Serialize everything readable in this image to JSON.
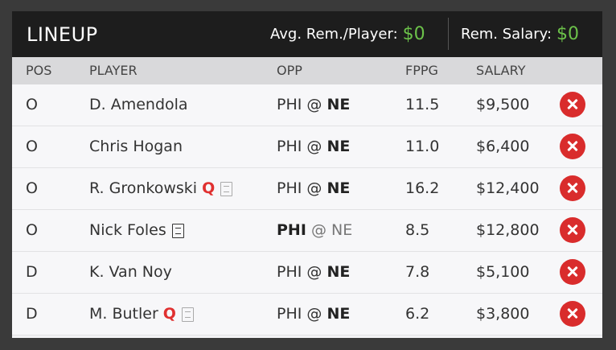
{
  "header": {
    "title": "LINEUP",
    "avg_label": "Avg. Rem./Player:",
    "avg_value": "$0",
    "rem_label": "Rem. Salary:",
    "rem_value": "$0",
    "accent_color": "#6cc24a"
  },
  "columns": {
    "pos": "POS",
    "player": "PLAYER",
    "opp": "OPP",
    "fppg": "FPPG",
    "salary": "SALARY"
  },
  "rows": [
    {
      "pos": "O",
      "player": "D. Amendola",
      "q": "",
      "note": "",
      "opp_away": "PHI",
      "opp_at": " @ ",
      "opp_home": "NE",
      "fppg": "11.5",
      "salary": "$9,500"
    },
    {
      "pos": "O",
      "player": "Chris Hogan",
      "q": "",
      "note": "",
      "opp_away": "PHI",
      "opp_at": " @ ",
      "opp_home": "NE",
      "fppg": "11.0",
      "salary": "$6,400"
    },
    {
      "pos": "O",
      "player": "R. Gronkowski",
      "q": "Q",
      "note": "note-icon",
      "opp_away": "PHI",
      "opp_at": " @ ",
      "opp_home": "NE",
      "fppg": "16.2",
      "salary": "$12,400"
    },
    {
      "pos": "O",
      "player": "Nick Foles",
      "q": "",
      "note": "note-icon-dark",
      "opp_away": "PHI",
      "opp_at": " @ ",
      "opp_home": "NE",
      "fppg": "8.5",
      "salary": "$12,800"
    },
    {
      "pos": "D",
      "player": "K. Van Noy",
      "q": "",
      "note": "",
      "opp_away": "PHI",
      "opp_at": " @ ",
      "opp_home": "NE",
      "fppg": "7.8",
      "salary": "$5,100"
    },
    {
      "pos": "D",
      "player": "M. Butler",
      "q": "Q",
      "note": "note-icon",
      "opp_away": "PHI",
      "opp_at": " @ ",
      "opp_home": "NE",
      "fppg": "6.2",
      "salary": "$3,800"
    }
  ]
}
